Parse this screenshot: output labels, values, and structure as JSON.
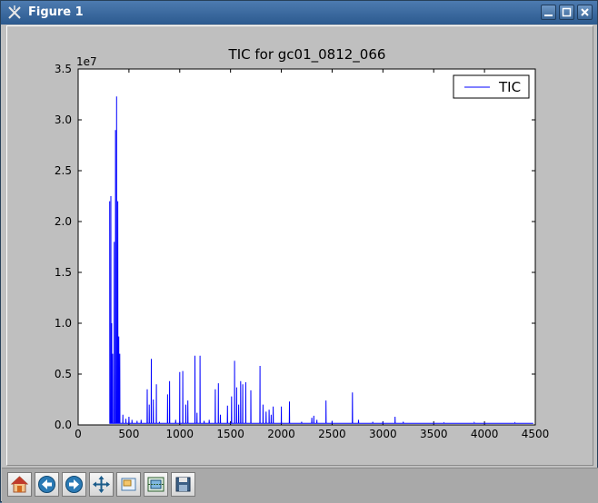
{
  "window": {
    "title": "Figure 1"
  },
  "toolbar": {
    "buttons": [
      {
        "name": "home-button",
        "icon": "home-icon"
      },
      {
        "name": "back-button",
        "icon": "back-arrow-icon"
      },
      {
        "name": "forward-button",
        "icon": "forward-arrow-icon"
      },
      {
        "name": "pan-button",
        "icon": "pan-arrows-icon"
      },
      {
        "name": "zoom-button",
        "icon": "zoom-rect-icon"
      },
      {
        "name": "subplots-button",
        "icon": "subplots-icon"
      },
      {
        "name": "save-button",
        "icon": "floppy-disk-icon"
      }
    ]
  },
  "chart_data": {
    "type": "line",
    "title": "TIC for gc01_0812_066",
    "y_offset_label": "1e7",
    "xlim": [
      0,
      4500
    ],
    "ylim": [
      0,
      3.5
    ],
    "xticks": [
      0,
      500,
      1000,
      1500,
      2000,
      2500,
      3000,
      3500,
      4000,
      4500
    ],
    "xtick_labels": [
      "0",
      "500",
      "1000",
      "1500",
      "2000",
      "2500",
      "3000",
      "3500",
      "4000",
      "4500"
    ],
    "yticks": [
      0,
      0.5,
      1.0,
      1.5,
      2.0,
      2.5,
      3.0,
      3.5
    ],
    "ytick_labels": [
      "0.0",
      "0.5",
      "1.0",
      "1.5",
      "2.0",
      "2.5",
      "3.0",
      "3.5"
    ],
    "legend": {
      "position": "top-right",
      "entries": [
        "TIC"
      ]
    },
    "series": [
      {
        "name": "TIC",
        "color": "#0000ff",
        "peaks": [
          [
            310,
            2.2
          ],
          [
            322,
            2.25
          ],
          [
            330,
            1.0
          ],
          [
            340,
            0.7
          ],
          [
            355,
            1.8
          ],
          [
            368,
            2.9
          ],
          [
            378,
            3.23
          ],
          [
            390,
            2.2
          ],
          [
            400,
            0.87
          ],
          [
            410,
            0.7
          ],
          [
            440,
            0.1
          ],
          [
            470,
            0.06
          ],
          [
            500,
            0.08
          ],
          [
            530,
            0.05
          ],
          [
            580,
            0.04
          ],
          [
            620,
            0.05
          ],
          [
            680,
            0.35
          ],
          [
            700,
            0.2
          ],
          [
            720,
            0.65
          ],
          [
            740,
            0.25
          ],
          [
            770,
            0.4
          ],
          [
            800,
            0.03
          ],
          [
            880,
            0.3
          ],
          [
            900,
            0.43
          ],
          [
            960,
            0.05
          ],
          [
            1000,
            0.52
          ],
          [
            1030,
            0.53
          ],
          [
            1060,
            0.2
          ],
          [
            1080,
            0.24
          ],
          [
            1150,
            0.68
          ],
          [
            1170,
            0.12
          ],
          [
            1200,
            0.68
          ],
          [
            1240,
            0.04
          ],
          [
            1290,
            0.05
          ],
          [
            1350,
            0.35
          ],
          [
            1380,
            0.41
          ],
          [
            1400,
            0.1
          ],
          [
            1470,
            0.19
          ],
          [
            1510,
            0.28
          ],
          [
            1540,
            0.63
          ],
          [
            1560,
            0.37
          ],
          [
            1580,
            0.2
          ],
          [
            1600,
            0.43
          ],
          [
            1620,
            0.4
          ],
          [
            1650,
            0.42
          ],
          [
            1700,
            0.34
          ],
          [
            1790,
            0.58
          ],
          [
            1820,
            0.2
          ],
          [
            1850,
            0.13
          ],
          [
            1880,
            0.15
          ],
          [
            1900,
            0.1
          ],
          [
            1920,
            0.18
          ],
          [
            2000,
            0.18
          ],
          [
            2080,
            0.23
          ],
          [
            2200,
            0.03
          ],
          [
            2300,
            0.07
          ],
          [
            2320,
            0.09
          ],
          [
            2350,
            0.05
          ],
          [
            2440,
            0.24
          ],
          [
            2500,
            0.04
          ],
          [
            2700,
            0.32
          ],
          [
            2760,
            0.05
          ],
          [
            2900,
            0.03
          ],
          [
            3000,
            0.03
          ],
          [
            3120,
            0.08
          ],
          [
            3200,
            0.03
          ],
          [
            3600,
            0.02
          ],
          [
            3900,
            0.02
          ],
          [
            4300,
            0.02
          ]
        ]
      }
    ]
  }
}
